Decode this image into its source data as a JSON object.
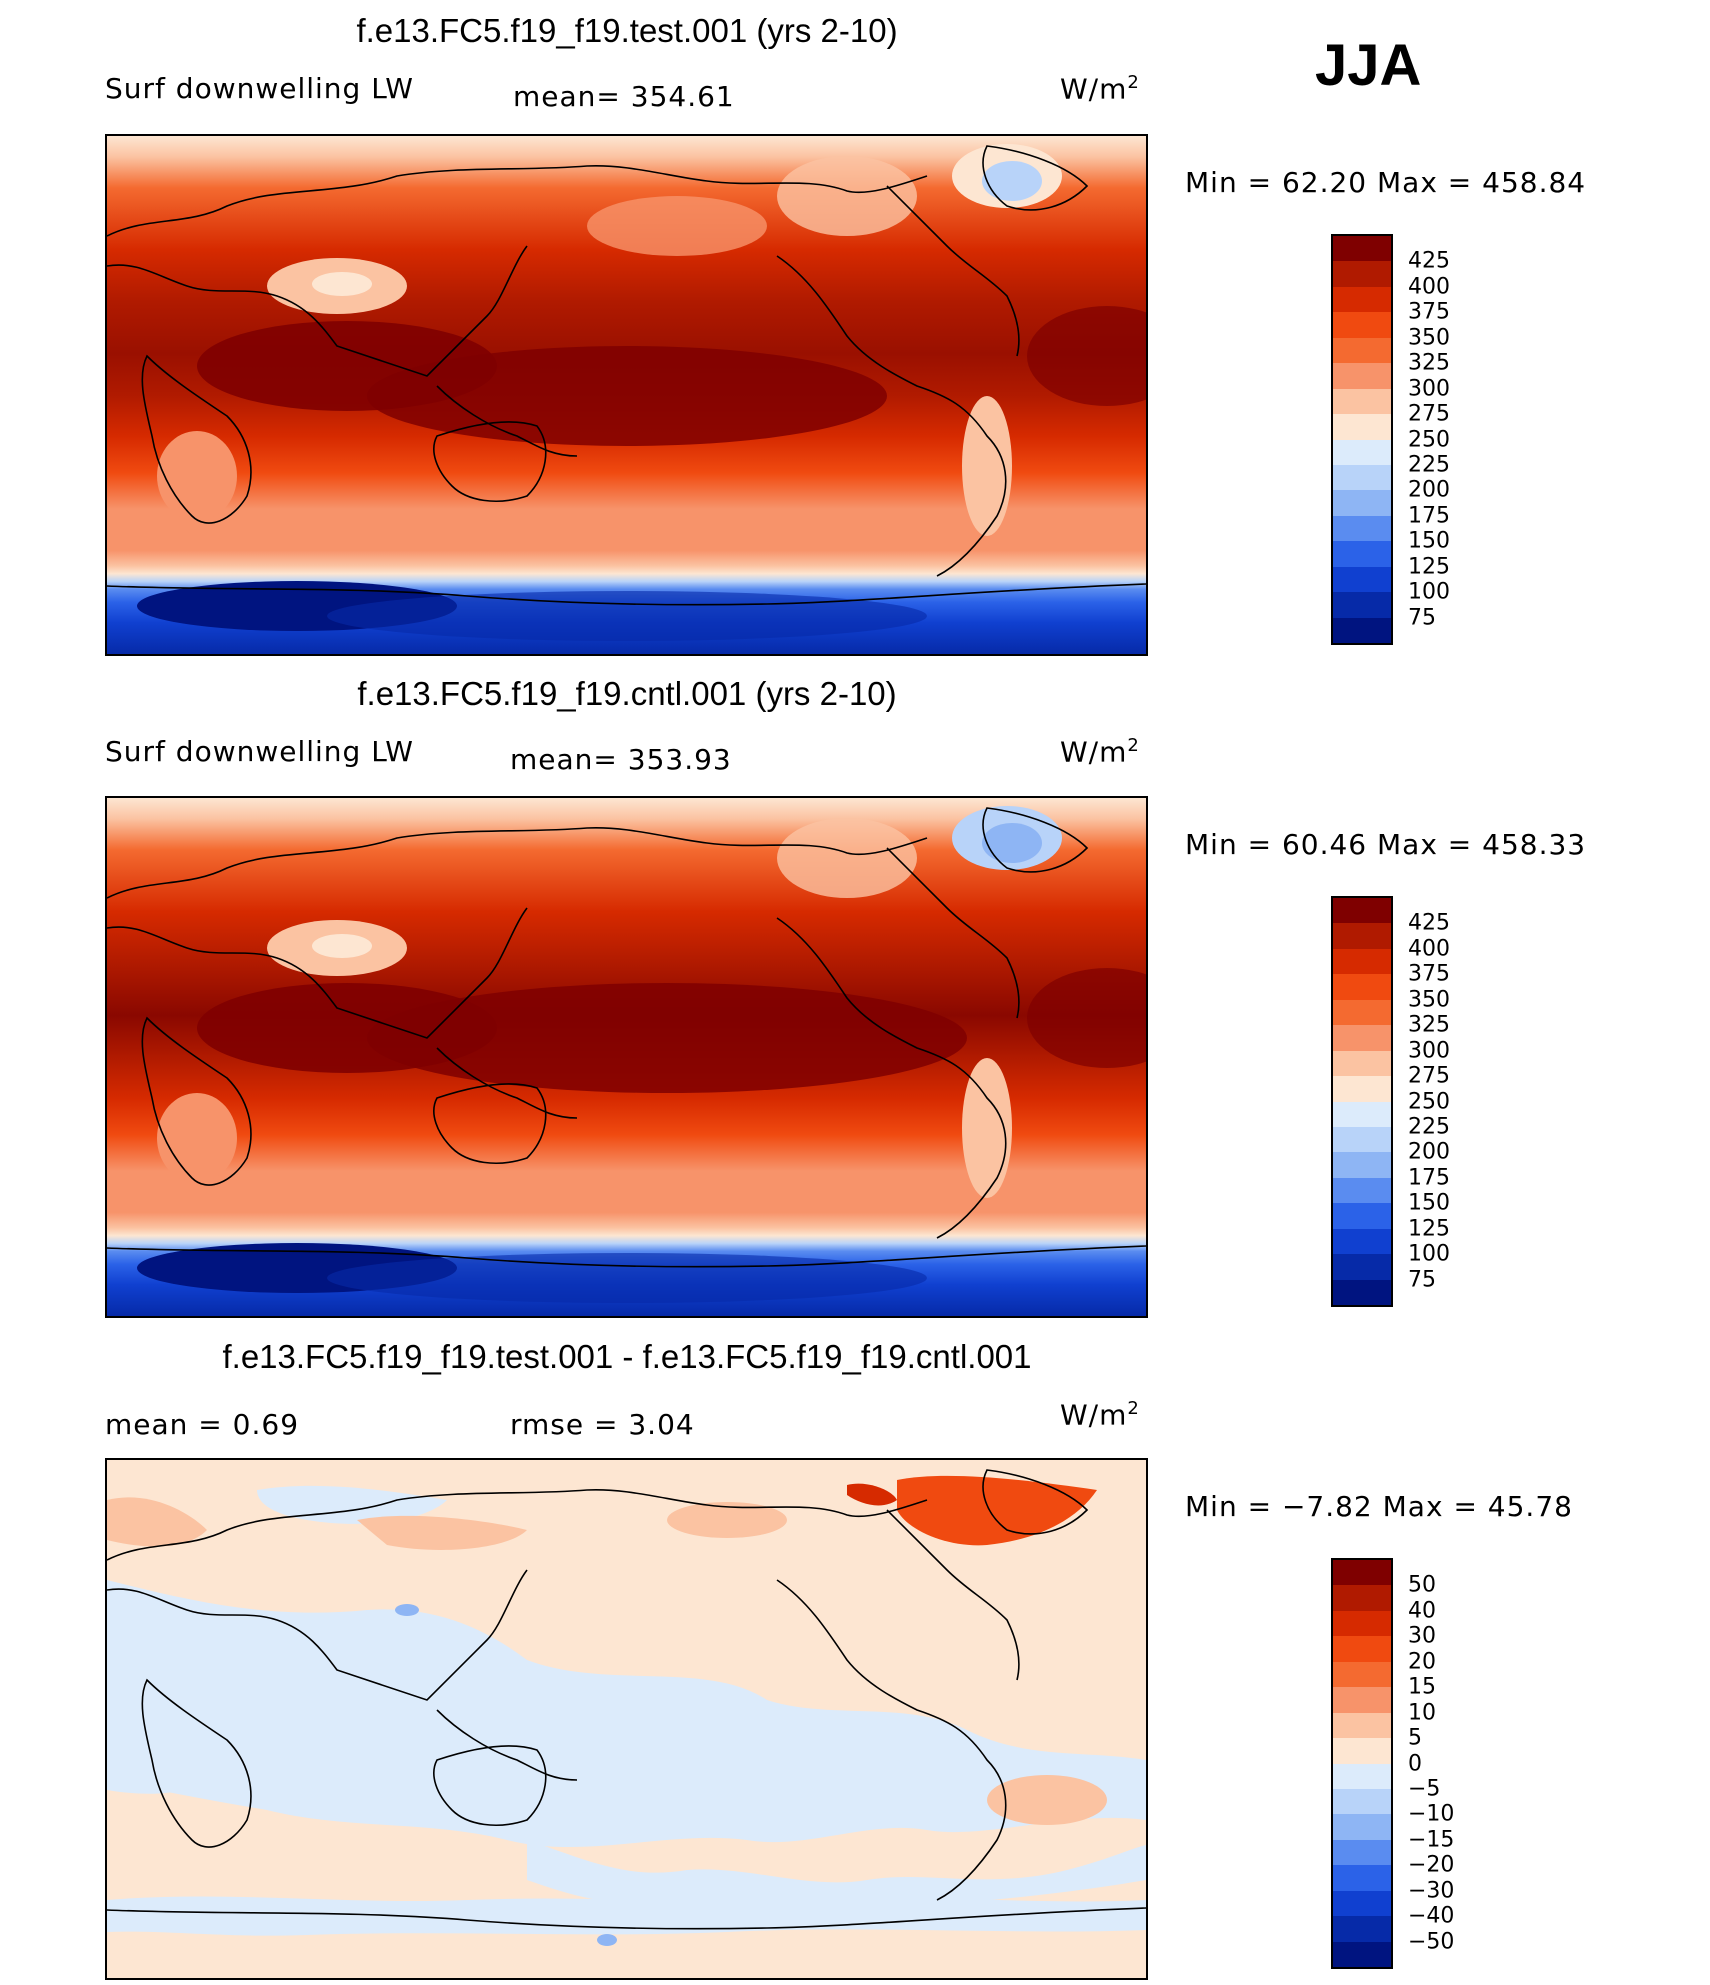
{
  "season": "JJA",
  "panels": [
    {
      "title": "f.e13.FC5.f19_f19.test.001 (yrs 2-10)",
      "left_label": "Surf downwelling LW",
      "mid_label": "mean= 354.61",
      "unit": "W/m",
      "unit_exp": "2",
      "min_max": "Min =   62.20  Max  =  458.84",
      "colorbar": {
        "levels": [
          "425",
          "400",
          "375",
          "350",
          "325",
          "300",
          "275",
          "250",
          "225",
          "200",
          "175",
          "150",
          "125",
          "100",
          "75"
        ],
        "colors": [
          "#7f0000",
          "#b01a00",
          "#d62a00",
          "#f04a10",
          "#f46a30",
          "#f7936a",
          "#fbc3a2",
          "#fde6d2",
          "#dcebfb",
          "#b8d3f9",
          "#8eb5f4",
          "#5a8cf0",
          "#2b62e8",
          "#1040d0",
          "#062aa8",
          "#001480"
        ]
      },
      "map_type": "absolute"
    },
    {
      "title": "f.e13.FC5.f19_f19.cntl.001 (yrs 2-10)",
      "left_label": "Surf downwelling LW",
      "mid_label": "mean= 353.93",
      "unit": "W/m",
      "unit_exp": "2",
      "min_max": "Min =   60.46  Max  =  458.33",
      "colorbar": {
        "levels": [
          "425",
          "400",
          "375",
          "350",
          "325",
          "300",
          "275",
          "250",
          "225",
          "200",
          "175",
          "150",
          "125",
          "100",
          "75"
        ],
        "colors": [
          "#7f0000",
          "#b01a00",
          "#d62a00",
          "#f04a10",
          "#f46a30",
          "#f7936a",
          "#fbc3a2",
          "#fde6d2",
          "#dcebfb",
          "#b8d3f9",
          "#8eb5f4",
          "#5a8cf0",
          "#2b62e8",
          "#1040d0",
          "#062aa8",
          "#001480"
        ]
      },
      "map_type": "absolute"
    },
    {
      "title": "f.e13.FC5.f19_f19.test.001 - f.e13.FC5.f19_f19.cntl.001",
      "left_label": "mean =     0.69",
      "mid_label": "rmse  =     3.04",
      "unit": "W/m",
      "unit_exp": "2",
      "min_max": "Min =   −7.82  Max  =    45.78",
      "colorbar": {
        "levels": [
          "50",
          "40",
          "30",
          "20",
          "15",
          "10",
          "5",
          "0",
          "−5",
          "−10",
          "−15",
          "−20",
          "−30",
          "−40",
          "−50"
        ],
        "colors": [
          "#7f0000",
          "#b01a00",
          "#d62a00",
          "#f04a10",
          "#f46a30",
          "#f7936a",
          "#fbc3a2",
          "#fde6d2",
          "#dcebfb",
          "#b8d3f9",
          "#8eb5f4",
          "#5a8cf0",
          "#2b62e8",
          "#1040d0",
          "#062aa8",
          "#001480"
        ]
      },
      "map_type": "difference"
    }
  ]
}
